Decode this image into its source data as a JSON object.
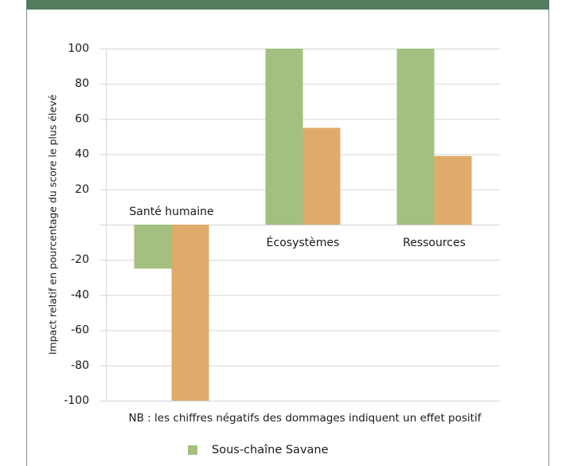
{
  "chart_data": {
    "type": "bar",
    "ylabel": "Impact relatif en pourcentage du score le plus élevé",
    "categories": [
      "Santé humaine",
      "Écosystèmes",
      "Ressources"
    ],
    "series": [
      {
        "name": "Sous-chaîne Savane",
        "color": "#a3c080",
        "values": [
          -25,
          100,
          100
        ]
      },
      {
        "color": "#e0ab6a",
        "values": [
          -100,
          55,
          39
        ]
      }
    ],
    "ylim": [
      -100,
      100
    ],
    "yticks": [
      -100,
      -80,
      -60,
      -40,
      -20,
      20,
      40,
      60,
      80,
      100
    ],
    "grid": true,
    "note": "NB : les chiffres négatifs des dommages indiquent un effet positif"
  }
}
